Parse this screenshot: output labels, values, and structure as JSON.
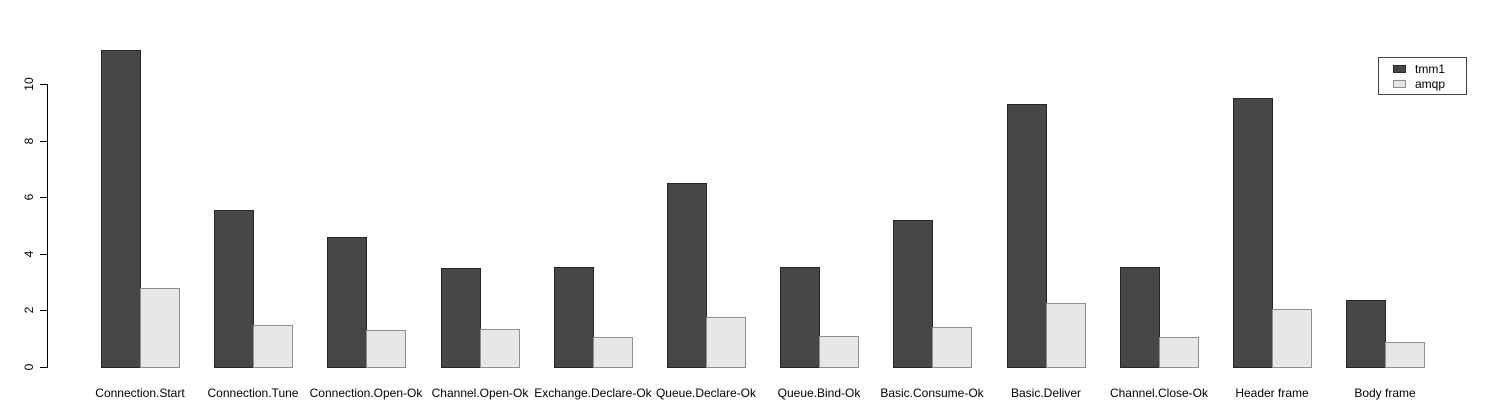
{
  "chart_data": {
    "type": "bar",
    "title": "",
    "xlabel": "",
    "ylabel": "",
    "grid": false,
    "legend_position": "top-right",
    "ylim": [
      0,
      10
    ],
    "yticks": [
      "0",
      "2",
      "4",
      "6",
      "8",
      "10"
    ],
    "categories": [
      "Connection.Start",
      "Connection.Tune",
      "Connection.Open-Ok",
      "Channel.Open-Ok",
      "Exchange.Declare-Ok",
      "Queue.Declare-Ok",
      "Queue.Bind-Ok",
      "Basic.Consume-Ok",
      "Basic.Deliver",
      "Channel.Close-Ok",
      "Header frame",
      "Body frame"
    ],
    "series": [
      {
        "name": "tmm1",
        "fill": "#474747",
        "border": "#262626",
        "values": [
          11.2,
          5.55,
          4.6,
          3.5,
          3.55,
          6.5,
          3.55,
          5.2,
          9.3,
          3.55,
          9.5,
          2.35
        ]
      },
      {
        "name": "amqp",
        "fill": "#e7e7e7",
        "border": "#8f8f8f",
        "values": [
          2.8,
          1.5,
          1.3,
          1.35,
          1.05,
          1.75,
          1.1,
          1.4,
          2.25,
          1.05,
          2.05,
          0.9
        ]
      }
    ]
  }
}
